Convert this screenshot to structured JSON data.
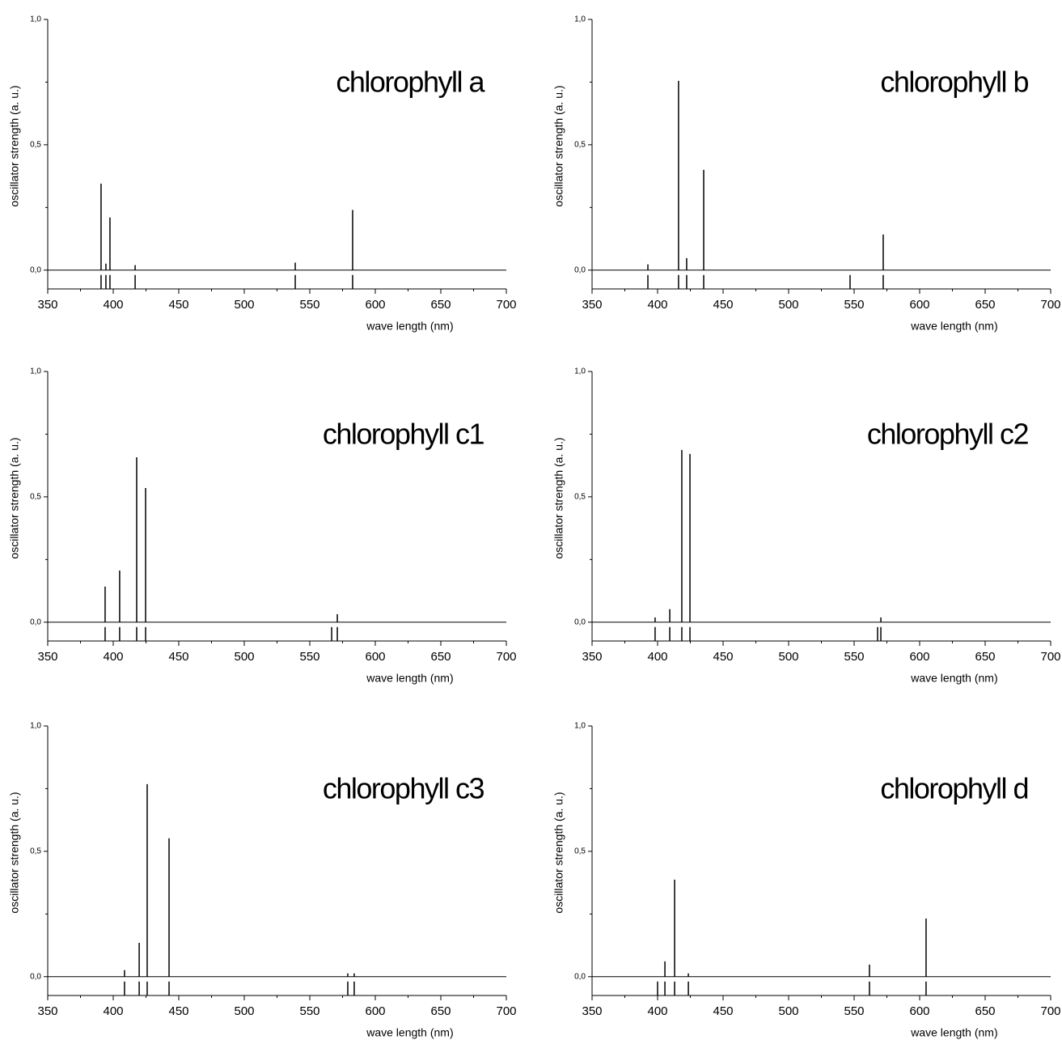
{
  "chart_data": [
    {
      "type": "stick",
      "title": "chlorophyll a",
      "xlabel": "wave length   (nm)",
      "ylabel": "oscillator strength  (a. u.)",
      "color": "#000000",
      "x": [
        390.7,
        394.4,
        397.5,
        416.7,
        538.9,
        582.7
      ],
      "values": [
        0.345,
        0.026,
        0.21,
        0.02,
        0.03,
        0.24
      ],
      "xlim": [
        350,
        700
      ],
      "ylim": [
        -0.075,
        1.0
      ],
      "xticks": [
        350,
        400,
        450,
        500,
        550,
        600,
        650,
        700
      ],
      "yticks": [
        {
          "value": 0,
          "label": "0,0"
        },
        {
          "value": 0.5,
          "label": "0,5"
        },
        {
          "value": 1,
          "label": "1,0"
        }
      ]
    },
    {
      "type": "stick",
      "title": "chlorophyll b",
      "xlabel": "wave length   (nm)",
      "ylabel": "oscillator strength  (a. u.)",
      "color": "#000000",
      "x": [
        392.6,
        416,
        422.2,
        435.2,
        546.9,
        572.2
      ],
      "values": [
        0.023,
        0.755,
        0.048,
        0.4,
        0,
        0.142
      ],
      "xlim": [
        350,
        700
      ],
      "ylim": [
        -0.075,
        1.0
      ],
      "xticks": [
        350,
        400,
        450,
        500,
        550,
        600,
        650,
        700
      ],
      "yticks": [
        {
          "value": 0,
          "label": "0,0"
        },
        {
          "value": 0.5,
          "label": "0,5"
        },
        {
          "value": 1,
          "label": "1,0"
        }
      ]
    },
    {
      "type": "stick",
      "title": "chlorophyll c1",
      "xlabel": "wave length   (nm)",
      "ylabel": "oscillator strength  (a. u.)",
      "color": "#000000",
      "x": [
        393.8,
        404.9,
        417.9,
        424.7,
        566.7,
        571
      ],
      "values": [
        0.142,
        0.206,
        0.658,
        0.535,
        0,
        0.032
      ],
      "xlim": [
        350,
        700
      ],
      "ylim": [
        -0.075,
        1.0
      ],
      "xticks": [
        350,
        400,
        450,
        500,
        550,
        600,
        650,
        700
      ],
      "yticks": [
        {
          "value": 0,
          "label": "0,0"
        },
        {
          "value": 0.5,
          "label": "0,5"
        },
        {
          "value": 1,
          "label": "1,0"
        }
      ]
    },
    {
      "type": "stick",
      "title": "chlorophyll c2",
      "xlabel": "wave length   (nm)",
      "ylabel": "oscillator strength  (a. u.)",
      "color": "#000000",
      "x": [
        398.1,
        409.3,
        418.5,
        424.7,
        567.9,
        570.4
      ],
      "values": [
        0.019,
        0.052,
        0.687,
        0.671,
        0,
        0.019
      ],
      "xlim": [
        350,
        700
      ],
      "ylim": [
        -0.075,
        1.0
      ],
      "xticks": [
        350,
        400,
        450,
        500,
        550,
        600,
        650,
        700
      ],
      "yticks": [
        {
          "value": 0,
          "label": "0,0"
        },
        {
          "value": 0.5,
          "label": "0,5"
        },
        {
          "value": 1,
          "label": "1,0"
        }
      ]
    },
    {
      "type": "stick",
      "title": "chlorophyll c3",
      "xlabel": "wave length   (nm)",
      "ylabel": "oscillator strength  (a. u.)",
      "color": "#000000",
      "x": [
        408.6,
        419.8,
        425.9,
        442.6,
        579,
        583.9
      ],
      "values": [
        0.026,
        0.135,
        0.768,
        0.552,
        0.013,
        0.013
      ],
      "xlim": [
        350,
        700
      ],
      "ylim": [
        -0.075,
        1.0
      ],
      "xticks": [
        350,
        400,
        450,
        500,
        550,
        600,
        650,
        700
      ],
      "yticks": [
        {
          "value": 0,
          "label": "0,0"
        },
        {
          "value": 0.5,
          "label": "0,5"
        },
        {
          "value": 1,
          "label": "1,0"
        }
      ]
    },
    {
      "type": "stick",
      "title": "chlorophyll d",
      "xlabel": "wave length   (nm)",
      "ylabel": "oscillator strength  (a. u.)",
      "color": "#000000",
      "x": [
        400,
        405.6,
        413,
        423.5,
        561.7,
        604.9
      ],
      "values": [
        0,
        0.061,
        0.387,
        0.013,
        0.048,
        0.232
      ],
      "xlim": [
        350,
        700
      ],
      "ylim": [
        -0.075,
        1.0
      ],
      "xticks": [
        350,
        400,
        450,
        500,
        550,
        600,
        650,
        700
      ],
      "yticks": [
        {
          "value": 0,
          "label": "0,0"
        },
        {
          "value": 0.5,
          "label": "0,5"
        },
        {
          "value": 1,
          "label": "1,0"
        }
      ]
    }
  ]
}
